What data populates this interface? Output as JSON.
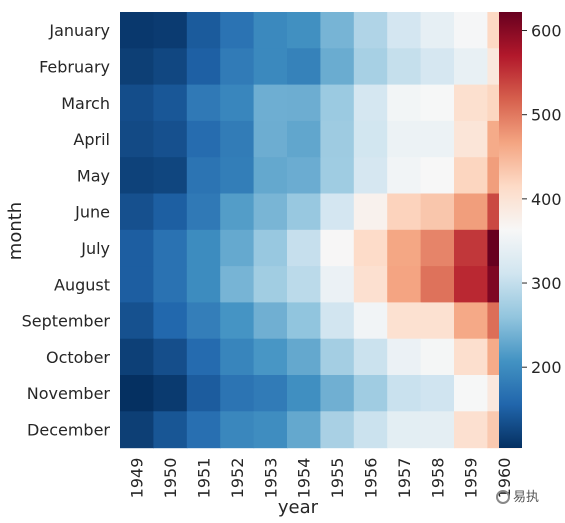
{
  "chart_data": {
    "type": "heatmap",
    "title": "",
    "xlabel": "year",
    "ylabel": "month",
    "x": [
      "1949",
      "1950",
      "1951",
      "1952",
      "1953",
      "1954",
      "1955",
      "1956",
      "1957",
      "1958",
      "1959",
      "1960"
    ],
    "y": [
      "January",
      "February",
      "March",
      "April",
      "May",
      "June",
      "July",
      "August",
      "September",
      "October",
      "November",
      "December"
    ],
    "values": [
      [
        112,
        115,
        145,
        171,
        196,
        204,
        242,
        284,
        315,
        340,
        360,
        417
      ],
      [
        118,
        126,
        150,
        180,
        196,
        188,
        233,
        277,
        301,
        318,
        342,
        391
      ],
      [
        132,
        141,
        178,
        193,
        236,
        235,
        267,
        317,
        356,
        362,
        406,
        419
      ],
      [
        129,
        135,
        163,
        181,
        235,
        227,
        269,
        313,
        348,
        348,
        396,
        461
      ],
      [
        121,
        125,
        172,
        183,
        229,
        234,
        270,
        318,
        355,
        363,
        420,
        472
      ],
      [
        135,
        149,
        178,
        218,
        243,
        264,
        315,
        374,
        422,
        435,
        472,
        535
      ],
      [
        148,
        170,
        199,
        230,
        264,
        302,
        364,
        413,
        465,
        491,
        548,
        622
      ],
      [
        148,
        170,
        199,
        242,
        272,
        293,
        347,
        405,
        467,
        505,
        559,
        606
      ],
      [
        136,
        158,
        184,
        209,
        237,
        259,
        312,
        355,
        404,
        404,
        463,
        508
      ],
      [
        119,
        133,
        162,
        191,
        211,
        229,
        274,
        306,
        347,
        359,
        407,
        461
      ],
      [
        104,
        114,
        146,
        172,
        180,
        203,
        237,
        271,
        305,
        310,
        362,
        390
      ],
      [
        118,
        140,
        166,
        194,
        201,
        229,
        278,
        306,
        336,
        337,
        405,
        432
      ]
    ],
    "colormap": "RdBu_r",
    "vmin": 104,
    "vmax": 622,
    "colorbar_ticks": [
      200,
      300,
      400,
      500,
      600
    ]
  },
  "watermark": {
    "text": "易执"
  }
}
